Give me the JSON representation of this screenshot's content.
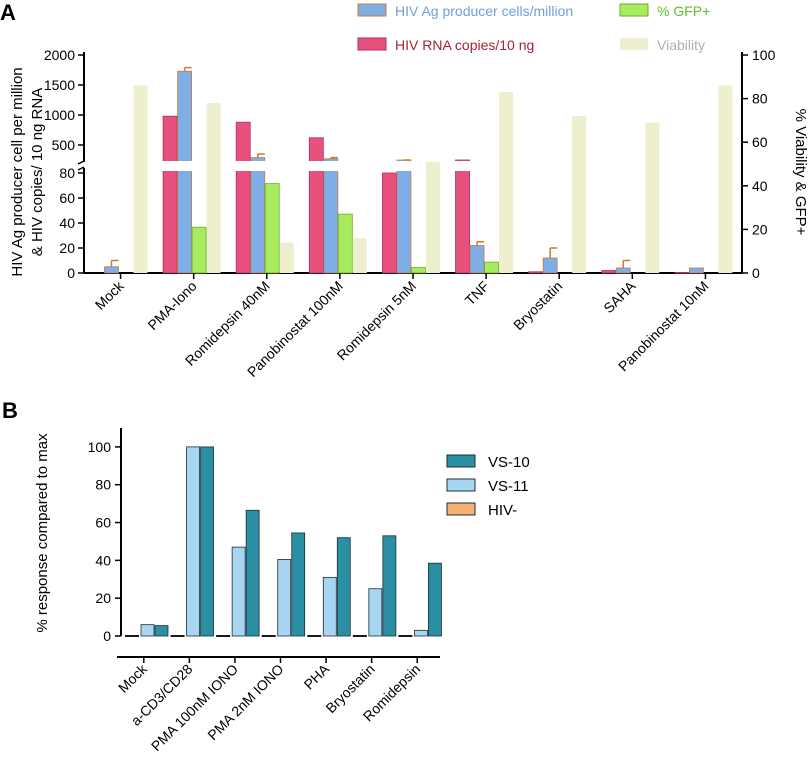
{
  "colors": {
    "rna": "#E8507E",
    "ag": "#7FAEE6",
    "gfp": "#A9EB5E",
    "viability": "#EEEFCF",
    "vs10": "#2A8FA3",
    "vs11": "#A8D6F2",
    "hivneg": "#F5B073",
    "error": "#C87A3C",
    "axis": "#000000"
  },
  "chart_data": [
    {
      "panel_label": "A",
      "type": "bar",
      "categories": [
        "Mock",
        "PMA-Iono",
        "Romidepsin 40nM",
        "Panobinostat 100nM",
        "Romidepsin 5nM",
        "TNF",
        "Bryostatin",
        "SAHA",
        "Panobinostat 10nM"
      ],
      "series": [
        {
          "name": "HIV RNA copies/10 ng",
          "key": "rna",
          "axis": "left",
          "values": [
            0,
            980,
            880,
            620,
            80,
            120,
            1,
            2,
            0.5
          ],
          "errors": [
            0,
            0,
            0,
            0,
            0,
            0,
            0,
            0,
            0
          ]
        },
        {
          "name": "HIV Ag producer cells/million",
          "key": "ag",
          "axis": "left",
          "values": [
            5,
            1730,
            290,
            270,
            150,
            22,
            12,
            4,
            4
          ],
          "errors": [
            5,
            60,
            60,
            20,
            80,
            3,
            8,
            6,
            0
          ]
        },
        {
          "name": "% GFP+",
          "key": "gfp",
          "axis": "right",
          "values": [
            0,
            21,
            41,
            27,
            2.5,
            5,
            0,
            0,
            0
          ],
          "errors": [
            0,
            0,
            0,
            0,
            0,
            0,
            0,
            0,
            0
          ]
        },
        {
          "name": "Viability",
          "key": "viability",
          "axis": "right",
          "values": [
            86,
            78,
            14,
            16,
            51,
            83,
            72,
            69,
            86
          ],
          "errors": [
            0,
            0,
            0,
            0,
            0,
            0,
            0,
            0,
            0
          ]
        }
      ],
      "legend_order": [
        "HIV Ag producer cells/million",
        "% GFP+",
        "HIV RNA copies/10 ng",
        "Viability"
      ],
      "y_left": {
        "label_line1": "HIV Ag producer cell per million",
        "label_line2": "& HIV copies/ 10 ng RNA",
        "lower_range": [
          0,
          80
        ],
        "upper_range": [
          250,
          2000
        ],
        "lower_ticks": [
          0,
          20,
          40,
          60,
          80
        ],
        "upper_ticks": [
          500,
          1000,
          1500,
          2000
        ]
      },
      "y_right": {
        "label": "% Viability & GFP+",
        "range": [
          0,
          100
        ],
        "ticks": [
          0,
          20,
          40,
          60,
          80,
          100
        ]
      },
      "legend": "top"
    },
    {
      "panel_label": "B",
      "type": "bar",
      "categories": [
        "Mock",
        "a-CD3/CD28",
        "PMA 100nM IONO",
        "PMA 2nM IONO",
        "PHA",
        "Bryostatin",
        "Romidepsin"
      ],
      "series": [
        {
          "name": "HIV-",
          "key": "hivneg",
          "values": [
            0,
            0,
            0,
            0,
            0,
            0,
            0
          ]
        },
        {
          "name": "VS-11",
          "key": "vs11",
          "values": [
            6,
            100,
            47,
            40.5,
            31,
            25,
            3
          ]
        },
        {
          "name": "VS-10",
          "key": "vs10",
          "values": [
            5.5,
            100,
            66.5,
            54.5,
            52,
            53,
            38.5
          ]
        }
      ],
      "legend_order": [
        "VS-10",
        "VS-11",
        "HIV-"
      ],
      "ylabel": "% response compared to max",
      "ylim": [
        0,
        110
      ],
      "ticks": [
        0,
        20,
        40,
        60,
        80,
        100
      ],
      "legend": "right"
    }
  ]
}
